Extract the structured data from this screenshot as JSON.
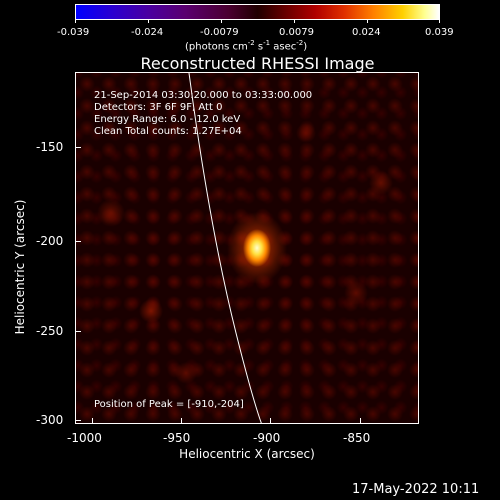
{
  "colorbar": {
    "ticks": [
      "-0.039",
      "-0.024",
      "-0.0079",
      "0.0079",
      "0.024",
      "0.039"
    ],
    "units_prefix": "(photons cm",
    "units_exp1": "-2",
    "units_mid1": " s",
    "units_exp2": "-1",
    "units_mid2": " asec",
    "units_exp3": "-2",
    "units_suffix": ")"
  },
  "plot": {
    "title": "Reconstructed RHESSI Image",
    "annotations": [
      "21-Sep-2014 03:30:20.000 to 03:33:00.000",
      "Detectors: 3F 6F 9F, Att 0",
      "Energy Range: 6.0 - 12.0 keV",
      "Clean     Total counts: 1.27E+04"
    ],
    "peak_label": "Position of Peak = [-910,-204]",
    "xlabel": "Heliocentric X (arcsec)",
    "ylabel": "Heliocentric Y (arcsec)",
    "xticks": [
      "-1000",
      "-950",
      "-900",
      "-850"
    ],
    "yticks": [
      "-150",
      "-200",
      "-250",
      "-300"
    ],
    "colors": {
      "limb": "#ffffff",
      "peak": "#ffe040"
    }
  },
  "timestamp": "17-May-2022 10:11"
}
